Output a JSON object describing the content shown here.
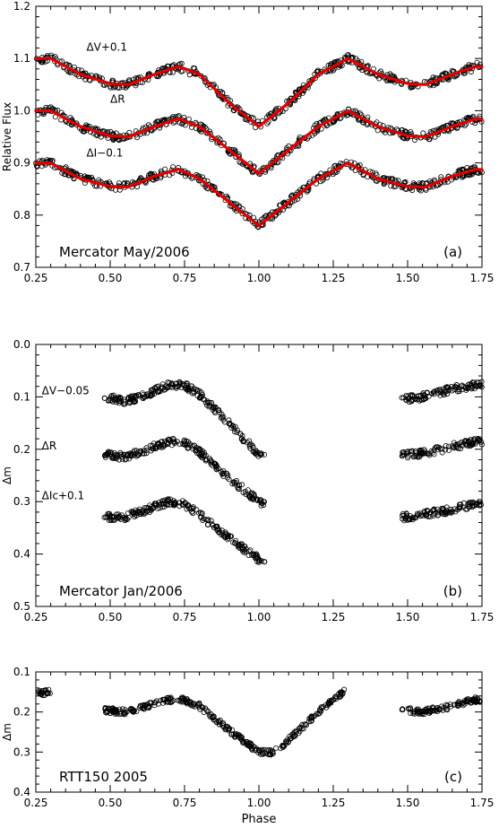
{
  "chart_data": [
    {
      "type": "scatter",
      "panel_label": "(a)",
      "annotation": "Mercator May/2006",
      "ylabel": "Relative Flux",
      "xlabel": "",
      "xlim": [
        0.25,
        1.75
      ],
      "ylim": [
        0.7,
        1.2
      ],
      "x_ticks": [
        "0.25",
        "0.50",
        "0.75",
        "1.00",
        "1.25",
        "1.50",
        "1.75"
      ],
      "y_ticks": [
        "0.7",
        "0.8",
        "0.9",
        "1.0",
        "1.1",
        "1.2"
      ],
      "inverted_y": false,
      "has_fit": true,
      "fit_color": "#e00000",
      "series": [
        {
          "name": "ΔV+0.1",
          "offset": 1.1,
          "label_x": 0.42,
          "label_y": 1.115,
          "phase_ranges": [
            [
              0.25,
              1.75
            ]
          ],
          "curve": [
            [
              0.25,
              0.0
            ],
            [
              0.3,
              0.0
            ],
            [
              0.4,
              -0.03
            ],
            [
              0.5,
              -0.048
            ],
            [
              0.56,
              -0.05
            ],
            [
              0.65,
              -0.03
            ],
            [
              0.73,
              -0.015
            ],
            [
              0.8,
              -0.03
            ],
            [
              0.9,
              -0.085
            ],
            [
              1.0,
              -0.13
            ],
            [
              1.1,
              -0.085
            ],
            [
              1.2,
              -0.03
            ],
            [
              1.3,
              0.0
            ],
            [
              1.4,
              -0.03
            ],
            [
              1.5,
              -0.048
            ],
            [
              1.56,
              -0.05
            ],
            [
              1.65,
              -0.03
            ],
            [
              1.73,
              -0.015
            ],
            [
              1.75,
              -0.016
            ]
          ]
        },
        {
          "name": "ΔR",
          "offset": 1.0,
          "label_x": 0.5,
          "label_y": 1.015,
          "phase_ranges": [
            [
              0.25,
              1.75
            ]
          ],
          "curve": [
            [
              0.25,
              0.0
            ],
            [
              0.3,
              0.0
            ],
            [
              0.4,
              -0.03
            ],
            [
              0.5,
              -0.048
            ],
            [
              0.56,
              -0.05
            ],
            [
              0.65,
              -0.03
            ],
            [
              0.73,
              -0.015
            ],
            [
              0.8,
              -0.03
            ],
            [
              0.9,
              -0.075
            ],
            [
              1.0,
              -0.12
            ],
            [
              1.1,
              -0.075
            ],
            [
              1.2,
              -0.03
            ],
            [
              1.3,
              0.0
            ],
            [
              1.4,
              -0.03
            ],
            [
              1.5,
              -0.048
            ],
            [
              1.56,
              -0.05
            ],
            [
              1.65,
              -0.03
            ],
            [
              1.73,
              -0.015
            ],
            [
              1.75,
              -0.016
            ]
          ]
        },
        {
          "name": "ΔI−0.1",
          "offset": 0.9,
          "label_x": 0.42,
          "label_y": 0.912,
          "phase_ranges": [
            [
              0.25,
              1.75
            ]
          ],
          "curve": [
            [
              0.25,
              0.0
            ],
            [
              0.3,
              0.0
            ],
            [
              0.4,
              -0.03
            ],
            [
              0.5,
              -0.045
            ],
            [
              0.56,
              -0.046
            ],
            [
              0.65,
              -0.025
            ],
            [
              0.73,
              -0.012
            ],
            [
              0.8,
              -0.03
            ],
            [
              0.9,
              -0.075
            ],
            [
              1.0,
              -0.12
            ],
            [
              1.1,
              -0.075
            ],
            [
              1.2,
              -0.03
            ],
            [
              1.3,
              0.0
            ],
            [
              1.4,
              -0.03
            ],
            [
              1.5,
              -0.045
            ],
            [
              1.56,
              -0.046
            ],
            [
              1.65,
              -0.025
            ],
            [
              1.73,
              -0.012
            ],
            [
              1.75,
              -0.013
            ]
          ]
        }
      ]
    },
    {
      "type": "scatter",
      "panel_label": "(b)",
      "annotation": "Mercator Jan/2006",
      "ylabel": "Δm",
      "xlabel": "",
      "xlim": [
        0.25,
        1.75
      ],
      "ylim": [
        0.0,
        0.5
      ],
      "x_ticks": [
        "0.25",
        "0.50",
        "0.75",
        "1.00",
        "1.25",
        "1.50",
        "1.75"
      ],
      "y_ticks": [
        "0.0",
        "0.1",
        "0.2",
        "0.3",
        "0.4",
        "0.5"
      ],
      "inverted_y": true,
      "has_fit": false,
      "series": [
        {
          "name": "ΔV−0.05",
          "offset": 0.0,
          "label_x": 0.27,
          "label_y": 0.095,
          "phase_ranges": [
            [
              0.48,
              1.02
            ],
            [
              1.48,
              1.75
            ]
          ],
          "curve": [
            [
              0.48,
              0.1
            ],
            [
              0.55,
              0.108
            ],
            [
              0.6,
              0.1
            ],
            [
              0.7,
              0.077
            ],
            [
              0.75,
              0.078
            ],
            [
              0.8,
              0.095
            ],
            [
              0.9,
              0.15
            ],
            [
              1.0,
              0.21
            ],
            [
              1.02,
              0.215
            ],
            [
              1.48,
              0.105
            ],
            [
              1.55,
              0.1
            ],
            [
              1.65,
              0.085
            ],
            [
              1.72,
              0.078
            ],
            [
              1.75,
              0.077
            ]
          ]
        },
        {
          "name": "ΔR",
          "offset": 0.0,
          "label_x": 0.27,
          "label_y": 0.2,
          "phase_ranges": [
            [
              0.48,
              1.02
            ],
            [
              1.48,
              1.75
            ]
          ],
          "curve": [
            [
              0.48,
              0.21
            ],
            [
              0.55,
              0.215
            ],
            [
              0.6,
              0.205
            ],
            [
              0.7,
              0.185
            ],
            [
              0.75,
              0.188
            ],
            [
              0.8,
              0.205
            ],
            [
              0.9,
              0.255
            ],
            [
              1.0,
              0.3
            ],
            [
              1.02,
              0.305
            ],
            [
              1.48,
              0.21
            ],
            [
              1.55,
              0.208
            ],
            [
              1.65,
              0.195
            ],
            [
              1.72,
              0.187
            ],
            [
              1.75,
              0.185
            ]
          ]
        },
        {
          "name": "ΔIc+0.1",
          "offset": 0.0,
          "label_x": 0.27,
          "label_y": 0.295,
          "phase_ranges": [
            [
              0.48,
              1.02
            ],
            [
              1.48,
              1.75
            ]
          ],
          "curve": [
            [
              0.48,
              0.33
            ],
            [
              0.55,
              0.33
            ],
            [
              0.6,
              0.32
            ],
            [
              0.7,
              0.3
            ],
            [
              0.75,
              0.305
            ],
            [
              0.8,
              0.325
            ],
            [
              0.9,
              0.37
            ],
            [
              1.0,
              0.41
            ],
            [
              1.02,
              0.415
            ],
            [
              1.48,
              0.33
            ],
            [
              1.55,
              0.325
            ],
            [
              1.65,
              0.315
            ],
            [
              1.72,
              0.305
            ],
            [
              1.75,
              0.3
            ]
          ]
        }
      ]
    },
    {
      "type": "scatter",
      "panel_label": "(c)",
      "annotation": "RTT150 2005",
      "ylabel": "Δm",
      "xlabel": "Phase",
      "xlim": [
        0.25,
        1.75
      ],
      "ylim": [
        0.1,
        0.4
      ],
      "x_ticks": [
        "0.25",
        "0.50",
        "0.75",
        "1.00",
        "1.25",
        "1.50",
        "1.75"
      ],
      "y_ticks": [
        "0.1",
        "0.2",
        "0.3",
        "0.4"
      ],
      "inverted_y": true,
      "has_fit": false,
      "series": [
        {
          "name": "",
          "offset": 0.0,
          "phase_ranges": [
            [
              0.25,
              0.3
            ],
            [
              0.48,
              1.29
            ],
            [
              1.48,
              1.75
            ]
          ],
          "curve": [
            [
              0.25,
              0.155
            ],
            [
              0.3,
              0.15
            ],
            [
              0.48,
              0.195
            ],
            [
              0.55,
              0.2
            ],
            [
              0.6,
              0.19
            ],
            [
              0.7,
              0.17
            ],
            [
              0.75,
              0.17
            ],
            [
              0.8,
              0.185
            ],
            [
              0.9,
              0.245
            ],
            [
              1.0,
              0.3
            ],
            [
              1.05,
              0.3
            ],
            [
              1.1,
              0.27
            ],
            [
              1.2,
              0.2
            ],
            [
              1.29,
              0.148
            ],
            [
              1.48,
              0.195
            ],
            [
              1.55,
              0.2
            ],
            [
              1.65,
              0.185
            ],
            [
              1.72,
              0.17
            ],
            [
              1.75,
              0.168
            ]
          ]
        }
      ]
    }
  ]
}
